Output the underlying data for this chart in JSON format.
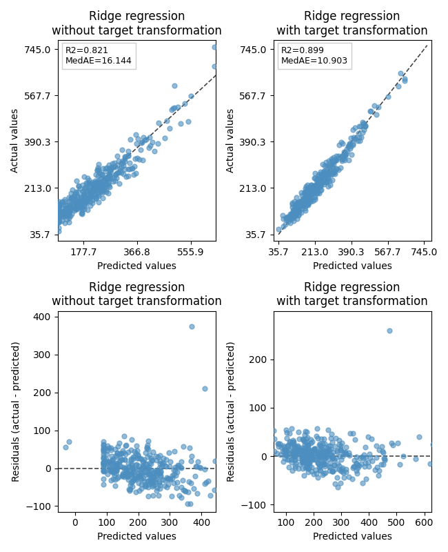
{
  "top_left": {
    "title": "Ridge regression\nwithout target transformation",
    "xlabel": "Predicted values",
    "ylabel": "Actual values",
    "r2": 0.821,
    "medae": 16.144,
    "xlim": [
      88.0,
      644.0
    ],
    "ylim": [
      10.0,
      780.0
    ],
    "xticks": [
      177.7,
      366.8,
      555.9
    ],
    "yticks": [
      35.7,
      213.0,
      390.3,
      567.7,
      745.0
    ]
  },
  "top_right": {
    "title": "Ridge regression\nwith target transformation",
    "xlabel": "Predicted values",
    "ylabel": "Actual values",
    "r2": 0.899,
    "medae": 10.903,
    "xlim": [
      10.0,
      780.0
    ],
    "ylim": [
      10.0,
      780.0
    ],
    "xticks": [
      35.7,
      213.0,
      390.3,
      567.7,
      745.0
    ],
    "yticks": [
      35.7,
      213.0,
      390.3,
      567.7,
      745.0
    ]
  },
  "bottom_left": {
    "title": "Ridge regression\nwithout target transformation",
    "xlabel": "Predicted values",
    "ylabel": "Residuals (actual - predicted)",
    "xlim": [
      -55,
      445
    ],
    "ylim": [
      -115,
      415
    ],
    "xticks": [
      0,
      100,
      200,
      300,
      400
    ],
    "yticks": [
      -100,
      0,
      100,
      200,
      300,
      400
    ]
  },
  "bottom_right": {
    "title": "Ridge regression\nwith target transformation",
    "xlabel": "Predicted values",
    "ylabel": "Residuals (actual - predicted)",
    "xlim": [
      55,
      625
    ],
    "ylim": [
      -115,
      300
    ],
    "xticks": [
      100,
      200,
      300,
      400,
      500,
      600
    ],
    "yticks": [
      -100,
      0,
      100,
      200
    ]
  },
  "dot_color": "#4C8EBF",
  "dot_alpha": 0.6,
  "dot_size": 25,
  "line_color": "#444444",
  "seed": 42
}
